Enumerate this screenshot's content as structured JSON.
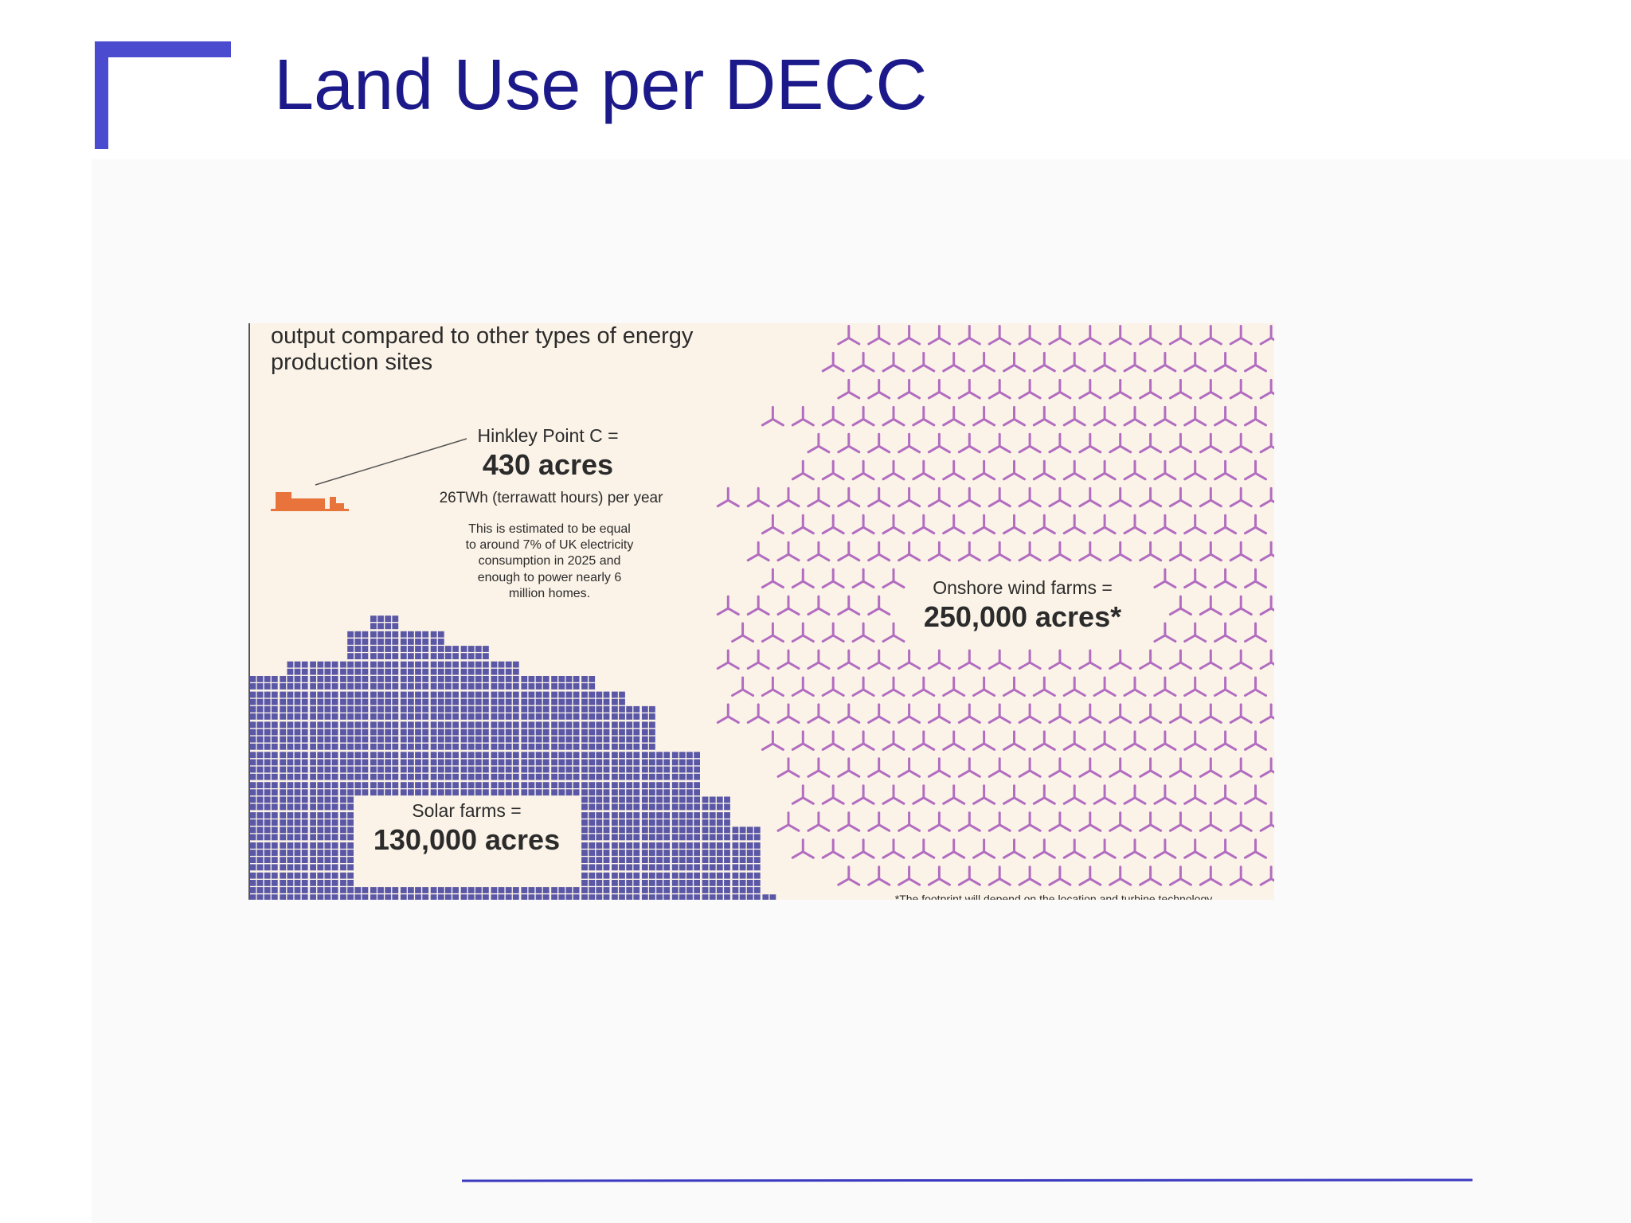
{
  "header": {
    "title": "Land Use per DECC"
  },
  "infographic": {
    "intro": [
      "output compared to other types of energy",
      "production sites"
    ],
    "hinkley": {
      "label": "Hinkley Point C =",
      "area": "430 acres",
      "output": "26TWh (terrawatt hours) per year",
      "note": [
        "This is estimated to be equal",
        "to around 7% of UK electricity",
        "consumption in 2025 and",
        "enough to power nearly 6",
        "million homes."
      ]
    },
    "solar": {
      "label": "Solar farms =",
      "area": "130,000 acres"
    },
    "wind": {
      "label": "Onshore wind farms =",
      "area": "250,000 acres*"
    },
    "footnote": "*The footprint will depend on the location and turbine technology"
  }
}
